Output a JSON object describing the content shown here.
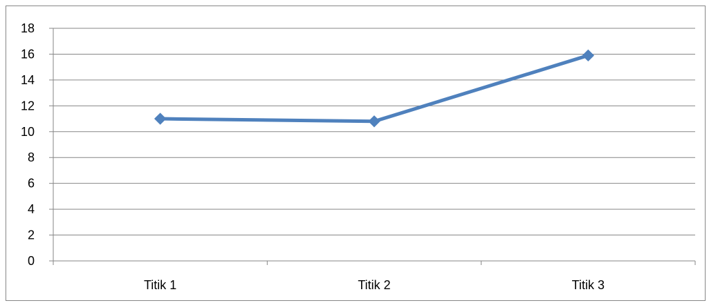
{
  "chart_data": {
    "type": "line",
    "categories": [
      "Titik 1",
      "Titik 2",
      "Titik 3"
    ],
    "series": [
      {
        "values": [
          11.0,
          10.8,
          15.9
        ],
        "color": "#4F81BD",
        "marker": "diamond"
      }
    ],
    "title": "",
    "xlabel": "",
    "ylabel": "",
    "ylim": [
      0,
      18
    ],
    "ytick_step": 2,
    "yticks": [
      "0",
      "2",
      "4",
      "6",
      "8",
      "10",
      "12",
      "14",
      "16",
      "18"
    ],
    "grid": true,
    "legend": "none",
    "gridline_color": "#868686",
    "axis_color": "#868686"
  }
}
